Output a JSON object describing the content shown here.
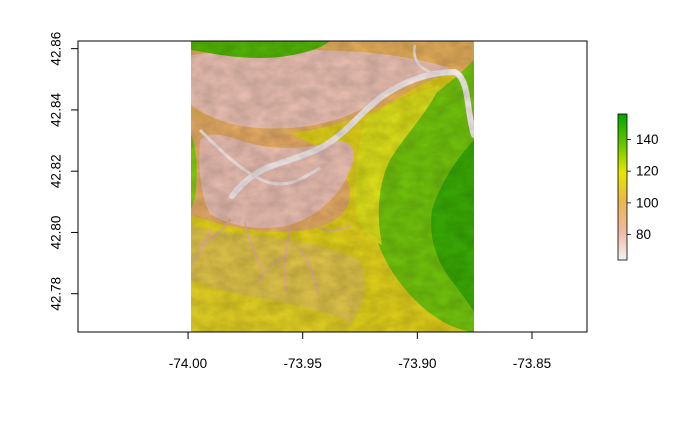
{
  "chart_data": {
    "type": "heatmap",
    "title": "",
    "xlabel": "",
    "ylabel": "",
    "xlim": [
      -74.048,
      -73.826
    ],
    "ylim": [
      42.7675,
      42.8625
    ],
    "raster_extent": {
      "x": [
        -74.0,
        -73.876
      ],
      "y": [
        42.7675,
        42.8625
      ]
    },
    "x_ticks": [
      -74.0,
      -73.95,
      -73.9,
      -73.85
    ],
    "x_tick_labels": [
      "-74.00",
      "-73.95",
      "-73.90",
      "-73.85"
    ],
    "y_ticks": [
      42.78,
      42.8,
      42.82,
      42.84,
      42.86
    ],
    "y_tick_labels": [
      "42.78",
      "42.80",
      "42.82",
      "42.84",
      "42.86"
    ],
    "legend": {
      "position": "right",
      "range": [
        64,
        156
      ],
      "ticks": [
        80,
        100,
        120,
        140
      ],
      "tick_labels": [
        "80",
        "100",
        "120",
        "140"
      ],
      "colors": [
        "#f2f2f2",
        "#eeb99f",
        "#eab64e",
        "#e6e600",
        "#63c600",
        "#00a600"
      ]
    }
  }
}
